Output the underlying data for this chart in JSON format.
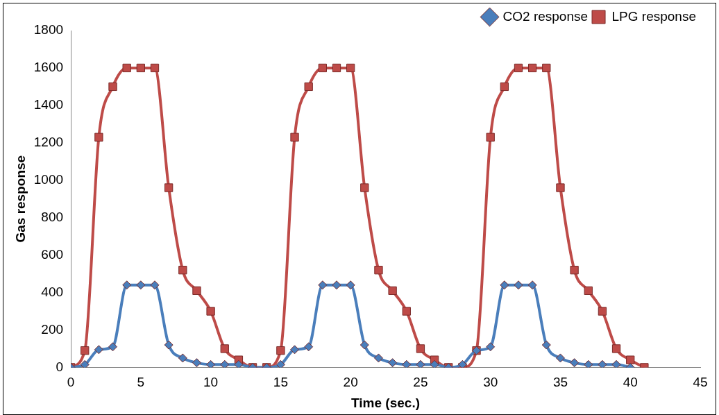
{
  "chart_data": {
    "type": "line",
    "xlabel": "Time (sec.)",
    "ylabel": "Gas response",
    "xlim": [
      0,
      45
    ],
    "xticks": [
      0,
      5,
      10,
      15,
      20,
      25,
      30,
      35,
      40,
      45
    ],
    "ylim": [
      0,
      1800
    ],
    "yticks": [
      0,
      200,
      400,
      600,
      800,
      1000,
      1200,
      1400,
      1600,
      1800
    ],
    "grid": false,
    "legend": "top right",
    "series": [
      {
        "name": "CO2 response",
        "color": "#4a7ebb",
        "marker": "diamond",
        "x": [
          0,
          1,
          2,
          3,
          4,
          5,
          6,
          7,
          8,
          9,
          10,
          11,
          12,
          13,
          14,
          15,
          16,
          17,
          18,
          19,
          20,
          21,
          22,
          23,
          24,
          25,
          26,
          27,
          28,
          29,
          30,
          31,
          32,
          33,
          34,
          35,
          36,
          37,
          38,
          39,
          40
        ],
        "values": [
          0,
          15,
          95,
          110,
          440,
          440,
          440,
          120,
          50,
          25,
          15,
          15,
          15,
          0,
          0,
          15,
          95,
          110,
          440,
          440,
          440,
          120,
          50,
          25,
          15,
          15,
          15,
          0,
          15,
          90,
          110,
          440,
          440,
          440,
          120,
          50,
          25,
          15,
          15,
          15,
          0
        ]
      },
      {
        "name": "LPG response",
        "color": "#be4b48",
        "marker": "square",
        "x": [
          0,
          1,
          2,
          3,
          4,
          5,
          6,
          7,
          8,
          9,
          10,
          11,
          12,
          13,
          14,
          15,
          16,
          17,
          18,
          19,
          20,
          21,
          22,
          23,
          24,
          25,
          26,
          27,
          28,
          29,
          30,
          31,
          32,
          33,
          34,
          35,
          36,
          37,
          38,
          39,
          40,
          41
        ],
        "values": [
          0,
          90,
          1230,
          1500,
          1600,
          1600,
          1600,
          960,
          520,
          410,
          300,
          100,
          40,
          0,
          0,
          90,
          1230,
          1500,
          1600,
          1600,
          1600,
          960,
          520,
          410,
          300,
          100,
          40,
          0,
          0,
          90,
          1230,
          1500,
          1600,
          1600,
          1600,
          960,
          520,
          410,
          300,
          100,
          40,
          0
        ]
      }
    ]
  }
}
